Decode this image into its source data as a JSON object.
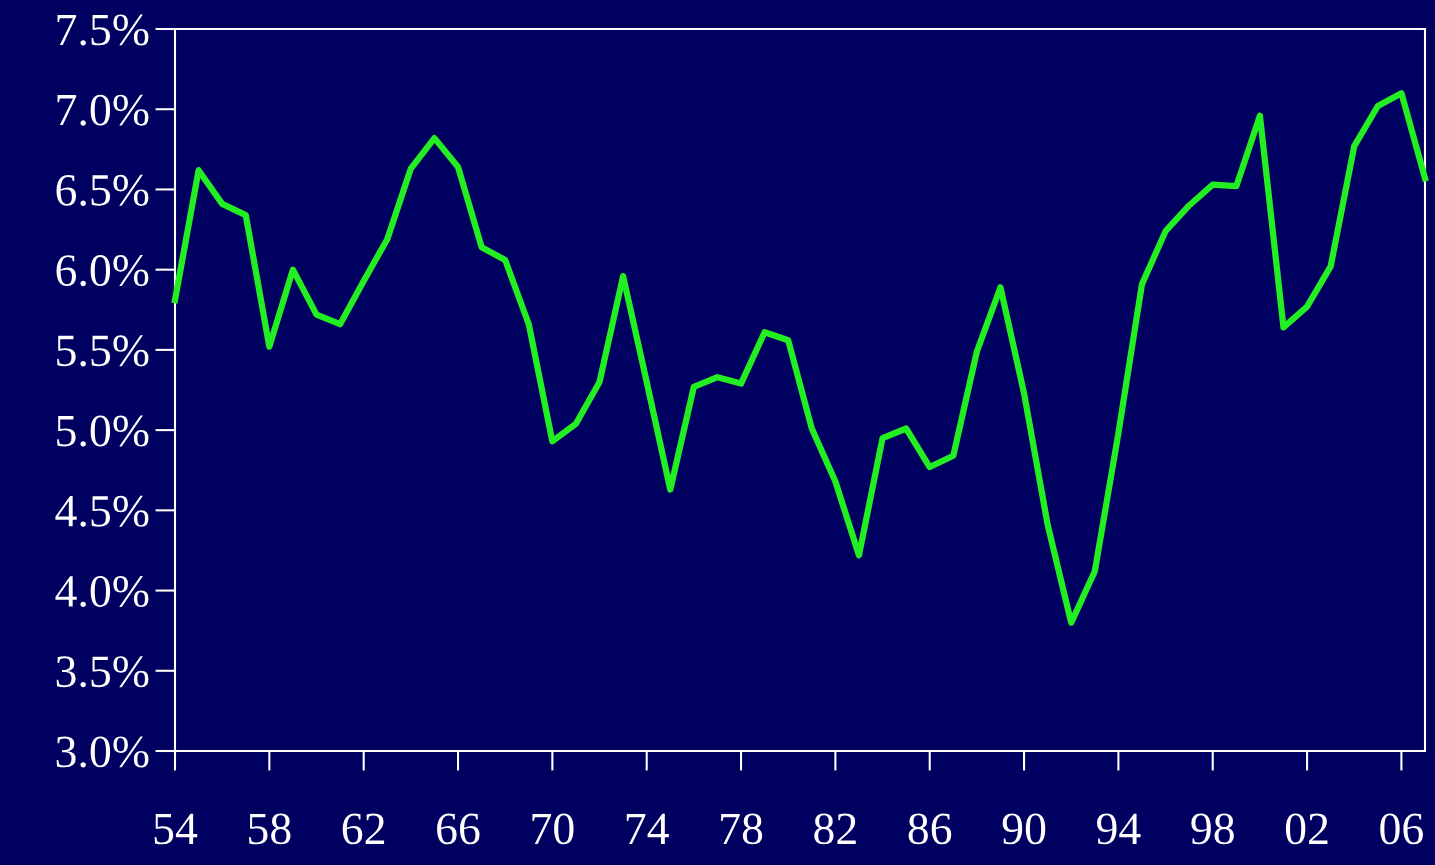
{
  "chart_data": {
    "type": "line",
    "color": "#22ee22",
    "x": [
      1954,
      1955,
      1956,
      1957,
      1958,
      1959,
      1960,
      1961,
      1962,
      1963,
      1964,
      1965,
      1966,
      1967,
      1968,
      1969,
      1970,
      1971,
      1972,
      1973,
      1974,
      1975,
      1976,
      1977,
      1978,
      1979,
      1980,
      1981,
      1982,
      1983,
      1984,
      1985,
      1986,
      1987,
      1988,
      1989,
      1990,
      1991,
      1992,
      1993,
      1994,
      1995,
      1996,
      1997,
      1998,
      1999,
      2000,
      2001,
      2002,
      2003,
      2004,
      2005,
      2006,
      2007
    ],
    "values": [
      5.81,
      6.62,
      6.41,
      6.34,
      5.52,
      6.0,
      5.72,
      5.66,
      5.93,
      6.19,
      6.63,
      6.82,
      6.64,
      6.14,
      6.06,
      5.66,
      4.93,
      5.04,
      5.3,
      5.96,
      5.3,
      4.63,
      5.27,
      5.33,
      5.29,
      5.61,
      5.56,
      5.01,
      4.68,
      4.22,
      4.95,
      5.01,
      4.77,
      4.84,
      5.49,
      5.89,
      5.23,
      4.41,
      3.8,
      4.12,
      4.98,
      5.91,
      6.24,
      6.4,
      6.53,
      6.52,
      6.96,
      5.64,
      5.77,
      6.02,
      6.77,
      7.02,
      7.1,
      6.57
    ],
    "xlim": [
      1954,
      2007
    ],
    "xticks": [
      {
        "value": 1954,
        "label": "54"
      },
      {
        "value": 1958,
        "label": "58"
      },
      {
        "value": 1962,
        "label": "62"
      },
      {
        "value": 1966,
        "label": "66"
      },
      {
        "value": 1970,
        "label": "70"
      },
      {
        "value": 1974,
        "label": "74"
      },
      {
        "value": 1978,
        "label": "78"
      },
      {
        "value": 1982,
        "label": "82"
      },
      {
        "value": 1986,
        "label": "86"
      },
      {
        "value": 1990,
        "label": "90"
      },
      {
        "value": 1994,
        "label": "94"
      },
      {
        "value": 1998,
        "label": "98"
      },
      {
        "value": 2002,
        "label": "02"
      },
      {
        "value": 2006,
        "label": "06"
      }
    ],
    "ylim": [
      3.0,
      7.5
    ],
    "yticks": [
      {
        "value": 3.0,
        "label": "3.0%"
      },
      {
        "value": 3.5,
        "label": "3.5%"
      },
      {
        "value": 4.0,
        "label": "4.0%"
      },
      {
        "value": 4.5,
        "label": "4.5%"
      },
      {
        "value": 5.0,
        "label": "5.0%"
      },
      {
        "value": 5.5,
        "label": "5.5%"
      },
      {
        "value": 6.0,
        "label": "6.0%"
      },
      {
        "value": 6.5,
        "label": "6.5%"
      },
      {
        "value": 7.0,
        "label": "7.0%"
      },
      {
        "value": 7.5,
        "label": "7.5%"
      }
    ],
    "grid": false,
    "marker": "none",
    "line_style": "solid"
  }
}
